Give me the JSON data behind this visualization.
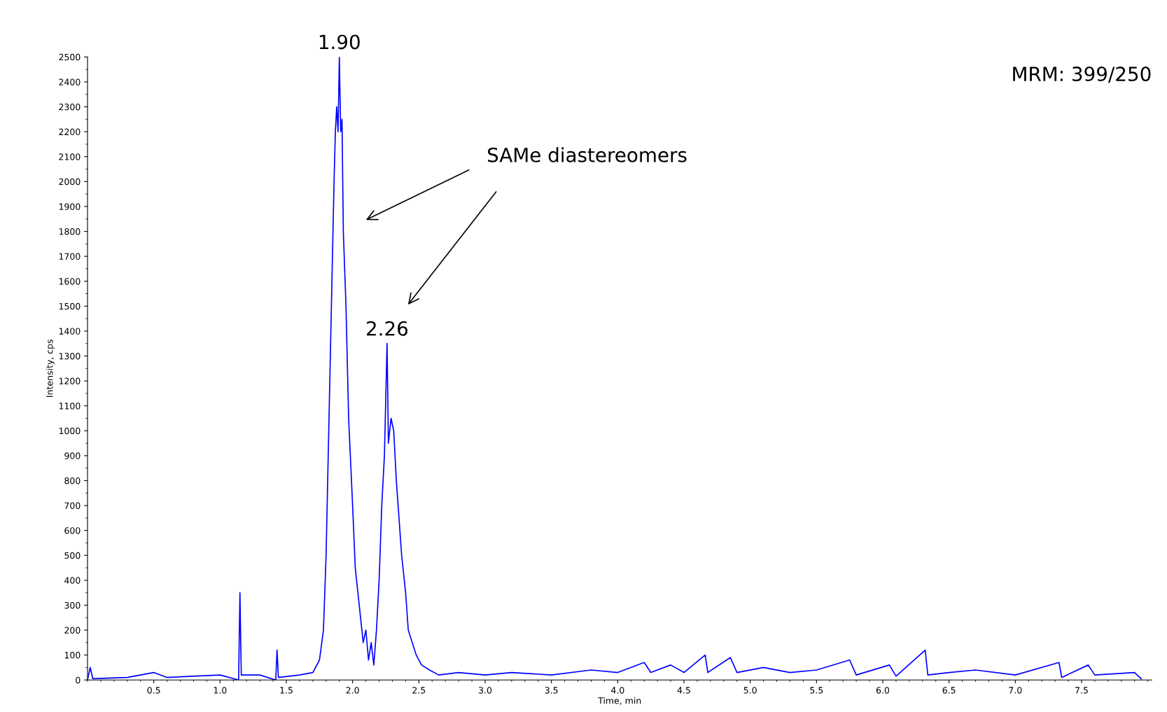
{
  "chart_data": {
    "type": "line",
    "xlabel": "Time, min",
    "ylabel": "Intensity, cps",
    "annotations": [
      {
        "text": "1.90",
        "x": 1.9,
        "y": 2500
      },
      {
        "text": "2.26",
        "x": 2.26,
        "y": 1350
      },
      "SAMe diastereomers",
      "MRM: 399/250"
    ],
    "xlim": [
      0,
      8.03
    ],
    "ylim": [
      0,
      2500
    ],
    "xticks": [
      0.5,
      {
        "value": 1,
        "label": "1.0"
      },
      1.5,
      {
        "value": 2,
        "label": "2.0"
      },
      2.5,
      {
        "value": 3,
        "label": "3.0"
      },
      3.5,
      {
        "value": 4,
        "label": "4.0"
      },
      4.5,
      {
        "value": 5,
        "label": "5.0"
      },
      5.5,
      {
        "value": 6,
        "label": "6.0"
      },
      6.5,
      {
        "value": 7,
        "label": "7.0"
      },
      7.5
    ],
    "yticks": [
      0,
      100,
      200,
      300,
      400,
      500,
      600,
      700,
      800,
      900,
      1000,
      1100,
      1200,
      1300,
      1400,
      1500,
      1600,
      1700,
      1800,
      1900,
      2000,
      2100,
      2200,
      2300,
      2400,
      2500
    ],
    "marker": "none",
    "line_style": "solid",
    "series": [
      {
        "color": "#0000ff",
        "x": [
          0.0,
          0.02,
          0.04,
          0.3,
          0.5,
          0.6,
          1.0,
          1.14,
          1.15,
          1.16,
          1.3,
          1.42,
          1.43,
          1.44,
          1.6,
          1.7,
          1.75,
          1.78,
          1.8,
          1.82,
          1.84,
          1.86,
          1.87,
          1.88,
          1.89,
          1.9,
          1.91,
          1.92,
          1.93,
          1.95,
          1.97,
          2.0,
          2.02,
          2.05,
          2.08,
          2.1,
          2.12,
          2.14,
          2.16,
          2.18,
          2.2,
          2.22,
          2.24,
          2.26,
          2.27,
          2.29,
          2.31,
          2.33,
          2.35,
          2.37,
          2.4,
          2.42,
          2.45,
          2.48,
          2.52,
          2.58,
          2.65,
          2.8,
          3.0,
          3.2,
          3.5,
          3.8,
          4.0,
          4.2,
          4.25,
          4.4,
          4.5,
          4.66,
          4.68,
          4.85,
          4.9,
          5.1,
          5.3,
          5.5,
          5.75,
          5.8,
          6.05,
          6.1,
          6.32,
          6.34,
          6.5,
          6.7,
          7.0,
          7.33,
          7.35,
          7.55,
          7.6,
          7.9,
          7.95
        ],
        "values": [
          0,
          50,
          5,
          10,
          30,
          10,
          20,
          0,
          350,
          20,
          20,
          0,
          120,
          10,
          20,
          30,
          80,
          200,
          500,
          1000,
          1500,
          2000,
          2200,
          2300,
          2200,
          2500,
          2200,
          2250,
          1800,
          1500,
          1050,
          700,
          450,
          300,
          150,
          200,
          80,
          150,
          60,
          200,
          400,
          700,
          900,
          1350,
          950,
          1050,
          1000,
          800,
          650,
          500,
          350,
          200,
          150,
          100,
          60,
          40,
          20,
          30,
          20,
          30,
          20,
          40,
          30,
          70,
          30,
          60,
          30,
          100,
          30,
          90,
          30,
          50,
          30,
          40,
          80,
          20,
          60,
          15,
          120,
          20,
          30,
          40,
          20,
          70,
          10,
          60,
          20,
          30,
          5
        ]
      }
    ]
  }
}
